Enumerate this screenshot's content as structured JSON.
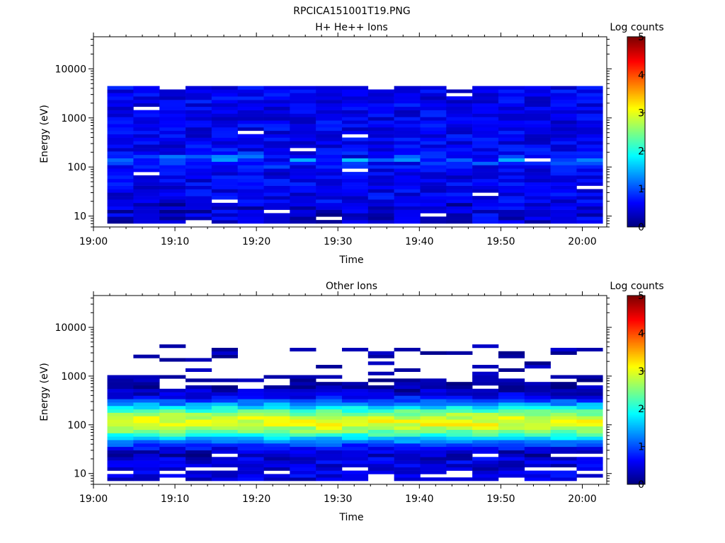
{
  "figure": {
    "title": "RPCICA151001T19.PNG"
  },
  "chart_data": [
    {
      "type": "heatmap",
      "title": "H+ He++ Ions",
      "xlabel": "Time",
      "ylabel": "Energy (eV)",
      "colorbar_label": "Log counts",
      "xticks": [
        "19:00",
        "19:10",
        "19:20",
        "19:30",
        "19:40",
        "19:50",
        "20:00"
      ],
      "xlim_minutes": [
        0,
        63
      ],
      "yscale": "log",
      "ylim": [
        6,
        45000
      ],
      "yticks": [
        "10",
        "100",
        "1000",
        "10000"
      ],
      "yticks_values": [
        10,
        100,
        1000,
        10000
      ],
      "cbar_range": [
        0,
        5
      ],
      "cbar_ticks": [
        "0",
        "1",
        "2",
        "3",
        "4",
        "5"
      ],
      "colormap": "jet",
      "time_start_minutes": 1.7,
      "time_bin_minutes": 3.2,
      "n_time_bins": 19,
      "energy_bins_log10": [
        0.85,
        3.65
      ],
      "n_energy_bins": 40,
      "typical_log_counts": {
        "high_energy": 0.6,
        "peak_100eV": 1.5,
        "low_energy": 0.4
      }
    },
    {
      "type": "heatmap",
      "title": "Other Ions",
      "xlabel": "Time",
      "ylabel": "Energy (eV)",
      "colorbar_label": "Log counts",
      "xticks": [
        "19:00",
        "19:10",
        "19:20",
        "19:30",
        "19:40",
        "19:50",
        "20:00"
      ],
      "xlim_minutes": [
        0,
        63
      ],
      "yscale": "log",
      "ylim": [
        6,
        45000
      ],
      "yticks": [
        "10",
        "100",
        "1000",
        "10000"
      ],
      "yticks_values": [
        10,
        100,
        1000,
        10000
      ],
      "cbar_range": [
        0,
        5
      ],
      "cbar_ticks": [
        "0",
        "1",
        "2",
        "3",
        "4",
        "5"
      ],
      "colormap": "jet",
      "time_start_minutes": 1.7,
      "time_bin_minutes": 3.2,
      "n_time_bins": 19,
      "energy_bins_log10": [
        0.85,
        3.65
      ],
      "n_energy_bins": 40,
      "typical_log_counts": {
        "high_energy_sparse": 0.2,
        "peak_100eV": 3.0,
        "low_energy": 0.3
      }
    }
  ]
}
